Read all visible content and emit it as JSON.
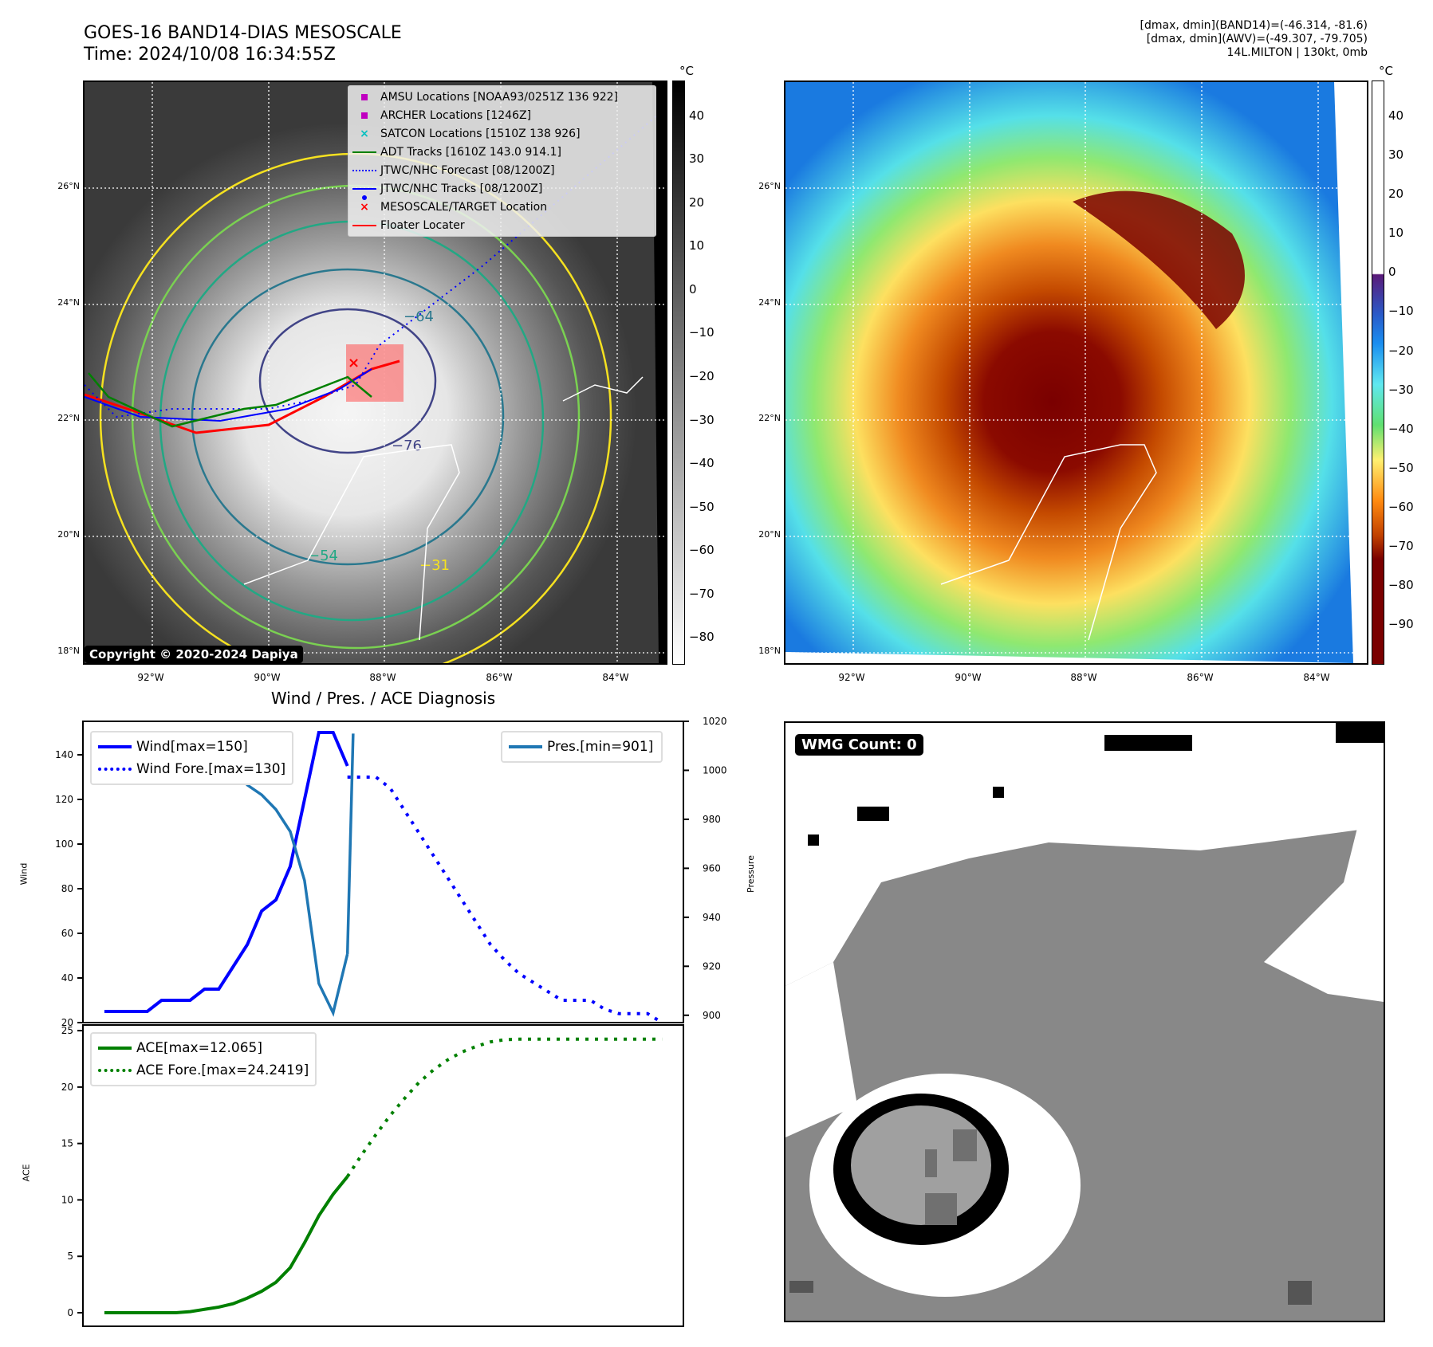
{
  "header": {
    "title_line1": "GOES-16 BAND14-DIAS MESOSCALE",
    "title_line2": "Time: 2024/10/08 16:34:55Z",
    "info_line1": "[dmax, dmin](BAND14)=(-46.314, -81.6)",
    "info_line2": "[dmax, dmin](AWV)=(-49.307, -79.705)",
    "info_line3": "14L.MILTON | 130kt, 0mb"
  },
  "left_map": {
    "lat_ticks": [
      "26°N",
      "24°N",
      "22°N",
      "20°N",
      "18°N"
    ],
    "lon_ticks": [
      "92°W",
      "90°W",
      "88°W",
      "86°W",
      "84°W"
    ],
    "colorbar_unit": "°C",
    "colorbar_ticks": [
      "40",
      "30",
      "20",
      "10",
      "0",
      "−10",
      "−20",
      "−30",
      "−40",
      "−50",
      "−60",
      "−70",
      "−80"
    ],
    "copyright": "Copyright © 2020-2024 Dapiya",
    "contour_labels": [
      "−64",
      "−76",
      "−54",
      "−31"
    ],
    "legend": [
      {
        "label": "AMSU Locations [NOAA93/0251Z 136 922]",
        "symbol": "square",
        "color": "#c000c0"
      },
      {
        "label": "ARCHER Locations [1246Z]",
        "symbol": "square",
        "color": "#c000c0"
      },
      {
        "label": "SATCON Locations [1510Z 138 926]",
        "symbol": "x",
        "color": "#00c0c0"
      },
      {
        "label": "ADT Tracks [1610Z 143.0 914.1]",
        "symbol": "line",
        "color": "#008000"
      },
      {
        "label": "JTWC/NHC Forecast [08/1200Z]",
        "symbol": "dotted",
        "color": "#0000ff"
      },
      {
        "label": "JTWC/NHC Tracks [08/1200Z]",
        "symbol": "line-dot",
        "color": "#0000ff"
      },
      {
        "label": "MESOSCALE/TARGET Location",
        "symbol": "x",
        "color": "#ff0000"
      },
      {
        "label": "Floater Locater",
        "symbol": "line",
        "color": "#ff0000"
      }
    ]
  },
  "right_map": {
    "lat_ticks": [
      "26°N",
      "24°N",
      "22°N",
      "20°N",
      "18°N"
    ],
    "lon_ticks": [
      "92°W",
      "90°W",
      "88°W",
      "86°W",
      "84°W"
    ],
    "colorbar_unit": "°C",
    "colorbar_ticks": [
      "40",
      "30",
      "20",
      "10",
      "0",
      "−10",
      "−20",
      "−30",
      "−40",
      "−50",
      "−60",
      "−70",
      "−80",
      "−90"
    ]
  },
  "wmg_panel": {
    "label": "WMG Count: 0"
  },
  "chart_data": [
    {
      "type": "line",
      "title": "Wind / Pres. / ACE Diagnosis",
      "ylabel": "Wind",
      "ylabel_right": "Pressure",
      "ylim": [
        20,
        155
      ],
      "ylim_right": [
        897,
        1020
      ],
      "yticks": [
        "20",
        "40",
        "60",
        "80",
        "100",
        "120",
        "140"
      ],
      "yticks_right": [
        "900",
        "920",
        "940",
        "960",
        "980",
        "1000",
        "1020"
      ],
      "x": [
        0,
        1,
        2,
        3,
        4,
        5,
        6,
        7,
        8,
        9,
        10,
        11,
        12,
        13,
        14,
        15,
        16,
        17,
        18,
        19,
        20,
        21,
        22,
        23,
        24,
        25,
        26,
        27,
        28,
        29,
        30,
        31,
        32,
        33,
        34,
        35,
        36,
        37,
        38,
        39
      ],
      "series": [
        {
          "name": "Wind[max=150]",
          "axis": "left",
          "style": "solid",
          "color": "#0000ff",
          "x": [
            0,
            1,
            2,
            3,
            4,
            5,
            6,
            7,
            8,
            9,
            10,
            11,
            12,
            13,
            14,
            15,
            16,
            17
          ],
          "values": [
            25,
            25,
            25,
            25,
            30,
            30,
            30,
            35,
            35,
            45,
            55,
            70,
            75,
            90,
            120,
            150,
            150,
            135
          ]
        },
        {
          "name": "Wind Fore.[max=130]",
          "axis": "left",
          "style": "dotted",
          "color": "#0000ff",
          "x": [
            17,
            18,
            19,
            20,
            21,
            22,
            23,
            24,
            25,
            26,
            27,
            28,
            29,
            30,
            31,
            32,
            33,
            34,
            35,
            36,
            37,
            38,
            39
          ],
          "values": [
            130,
            130,
            130,
            125,
            115,
            105,
            95,
            85,
            75,
            65,
            55,
            48,
            42,
            38,
            34,
            30,
            30,
            30,
            26,
            24,
            24,
            24,
            20
          ]
        },
        {
          "name": "Pres.[min=901]",
          "axis": "right",
          "style": "solid",
          "color": "#1f77b4",
          "x": [
            0,
            1,
            2,
            3,
            4,
            5,
            6,
            7,
            8,
            9,
            10,
            11,
            12,
            13,
            14,
            15,
            16,
            17
          ],
          "values": [
            1015,
            1015,
            1015,
            1015,
            1011,
            1011,
            1009,
            1008,
            1008,
            1003,
            994,
            990,
            984,
            975,
            955,
            913,
            901,
            925
          ]
        },
        {
          "name": "Pres.[min=901] (rise)",
          "axis": "right",
          "style": "solid",
          "color": "#1f77b4",
          "x": [
            17,
            17.4
          ],
          "values": [
            925,
            1015
          ]
        }
      ]
    },
    {
      "type": "line",
      "ylabel": "ACE",
      "ylim": [
        -1.2,
        25.5
      ],
      "yticks": [
        "0",
        "5",
        "10",
        "15",
        "20",
        "25"
      ],
      "series": [
        {
          "name": "ACE[max=12.065]",
          "style": "solid",
          "color": "#008000",
          "x": [
            0,
            1,
            2,
            3,
            4,
            5,
            6,
            7,
            8,
            9,
            10,
            11,
            12,
            13,
            14,
            15,
            16,
            17
          ],
          "values": [
            0,
            0,
            0,
            0,
            0,
            0,
            0.1,
            0.3,
            0.5,
            0.8,
            1.3,
            1.9,
            2.7,
            4.0,
            6.2,
            8.6,
            10.5,
            12.065
          ]
        },
        {
          "name": "ACE Fore.[max=24.2419]",
          "style": "dotted",
          "color": "#008000",
          "x": [
            17,
            18,
            19,
            20,
            21,
            22,
            23,
            24,
            25,
            26,
            27,
            28,
            29,
            30,
            31,
            32,
            33,
            34,
            35,
            36,
            37,
            38,
            39
          ],
          "values": [
            12.065,
            14.0,
            15.8,
            17.5,
            19.0,
            20.4,
            21.5,
            22.4,
            23.1,
            23.6,
            24.0,
            24.2,
            24.2419,
            24.2419,
            24.2419,
            24.2419,
            24.2419,
            24.2419,
            24.2419,
            24.2419,
            24.2419,
            24.2419,
            24.2419
          ]
        }
      ]
    }
  ]
}
